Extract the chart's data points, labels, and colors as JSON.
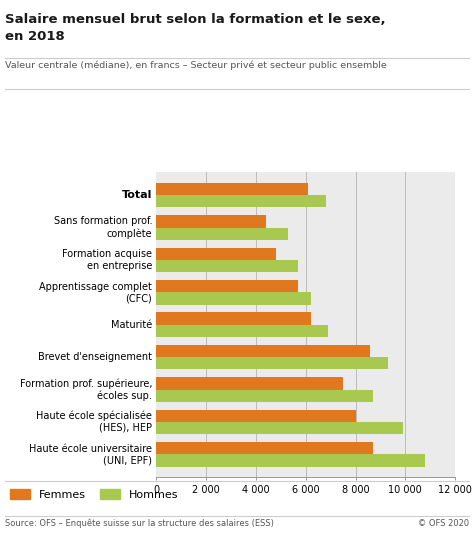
{
  "title_line1": "Salaire mensuel brut selon la formation et le sexe,",
  "title_line2": "en 2018",
  "subtitle": "Valeur centrale (médiane), en francs – Secteur privé et secteur public ensemble",
  "categories": [
    "Total",
    "Sans formation prof.\ncomplète",
    "Formation acquise\nen entreprise",
    "Apprentissage complet\n(CFC)",
    "Maturité",
    "Brevet d'enseignement",
    "Formation prof. supérieure,\nécoles sup.",
    "Haute école spécialisée\n(HES), HEP",
    "Haute école universitaire\n(UNI, EPF)"
  ],
  "femmes": [
    6100,
    4400,
    4800,
    5700,
    6200,
    8600,
    7500,
    8000,
    8700
  ],
  "hommes": [
    6800,
    5300,
    5700,
    6200,
    6900,
    9300,
    8700,
    9900,
    10800
  ],
  "femmes_color": "#E07820",
  "hommes_color": "#A8C850",
  "background_plot": "#EBEBEB",
  "background_fig": "#FFFFFF",
  "xlim": [
    0,
    12000
  ],
  "xticks": [
    0,
    2000,
    4000,
    6000,
    8000,
    10000,
    12000
  ],
  "xtick_labels": [
    "0",
    "2 000",
    "4 000",
    "6 000",
    "8 000",
    "10 000",
    "12 000"
  ],
  "source": "Source: OFS – Enquête suisse sur la structure des salaires (ESS)",
  "copyright": "© OFS 2020",
  "vline_color": "#BBBBBB",
  "vlines": [
    2000,
    4000,
    6000,
    8000,
    10000,
    12000
  ],
  "bar_height": 0.38,
  "legend_femmes": "Femmes",
  "legend_hommes": "Hommes"
}
